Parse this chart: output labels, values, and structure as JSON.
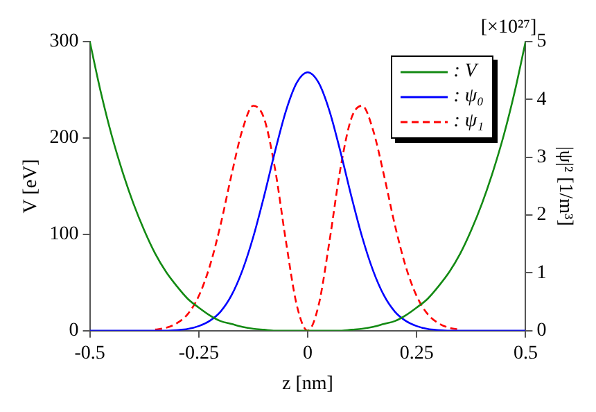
{
  "chart_data": {
    "type": "line",
    "xlabel": "z [nm]",
    "ylabel": "V [eV]",
    "y2label": "|ψ|² [1/m³]",
    "annotations": [
      "[×10²⁷]"
    ],
    "x": [
      -0.5,
      -0.475,
      -0.45,
      -0.425,
      -0.4,
      -0.375,
      -0.35,
      -0.325,
      -0.3,
      -0.275,
      -0.25,
      -0.225,
      -0.2,
      -0.175,
      -0.15,
      -0.125,
      -0.1,
      -0.075,
      -0.05,
      -0.025,
      0,
      0.025,
      0.05,
      0.075,
      0.1,
      0.125,
      0.15,
      0.175,
      0.2,
      0.225,
      0.25,
      0.275,
      0.3,
      0.325,
      0.35,
      0.375,
      0.4,
      0.425,
      0.45,
      0.475,
      0.5
    ],
    "xlim": [
      -0.5,
      0.5
    ],
    "xticks": [
      -0.5,
      -0.25,
      0,
      0.25,
      0.5
    ],
    "ylim": [
      0,
      300
    ],
    "yticks": [
      0,
      100,
      200,
      300
    ],
    "y2lim": [
      0,
      5
    ],
    "y2ticks": [
      0,
      1,
      2,
      3,
      4,
      5
    ],
    "grid": false,
    "legend": "top right",
    "marker": "none",
    "series": [
      {
        "name": ": V",
        "color": "#138a13",
        "line_style": "solid",
        "values": [
          300,
          248,
          203,
          165,
          132,
          104,
          80,
          61,
          46,
          33,
          24,
          16,
          10,
          7,
          4,
          2,
          1,
          0,
          0,
          0,
          0,
          0,
          0,
          0,
          1,
          2,
          4,
          7,
          10,
          16,
          24,
          33,
          46,
          61,
          80,
          104,
          132,
          165,
          203,
          248,
          300
        ]
      },
      {
        "name": ": ψ₀",
        "color": "#0000ff",
        "line_style": "solid",
        "axis": "y2",
        "values": [
          0,
          0,
          0,
          0,
          0,
          0,
          0,
          0,
          0.01,
          0.03,
          0.08,
          0.17,
          0.33,
          0.61,
          1.04,
          1.62,
          2.33,
          3.1,
          3.8,
          4.29,
          4.47,
          4.29,
          3.8,
          3.1,
          2.33,
          1.62,
          1.04,
          0.61,
          0.33,
          0.17,
          0.08,
          0.03,
          0.01,
          0,
          0,
          0,
          0,
          0,
          0,
          0,
          0
        ]
      },
      {
        "name": ": ψ₁",
        "color": "#ff0000",
        "line_style": "dashed",
        "axis": "y2",
        "values": [
          null,
          null,
          null,
          null,
          null,
          null,
          0.02,
          0.05,
          0.13,
          0.29,
          0.6,
          1.11,
          1.83,
          2.69,
          3.47,
          3.89,
          3.67,
          2.8,
          1.55,
          0.44,
          0,
          0.44,
          1.55,
          2.8,
          3.67,
          3.89,
          3.47,
          2.69,
          1.83,
          1.11,
          0.6,
          0.29,
          0.13,
          0.05,
          0.02,
          null,
          null,
          null,
          null,
          null,
          null
        ]
      }
    ]
  }
}
